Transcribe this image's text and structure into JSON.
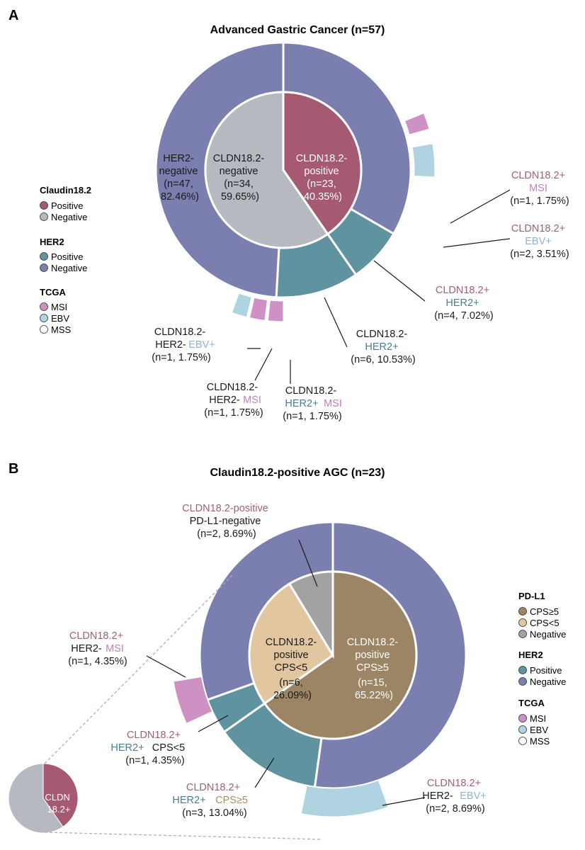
{
  "colors": {
    "cldn_positive": "#a55a72",
    "cldn_negative": "#b6b9bf",
    "her2_positive": "#5e939f",
    "her2_negative": "#7a7fb0",
    "msi": "#cd92c3",
    "ebv": "#afd3e0",
    "mss": "#ffffff",
    "cps_ge5": "#9b8565",
    "cps_lt5": "#e1c6a0",
    "pdl1_negative": "#a2a2a2",
    "label_pink": "#a06076",
    "label_teal": "#4d7d8c",
    "label_msi": "#c07fba",
    "label_ebv": "#8fb4d3",
    "label_tan": "#a98e62"
  },
  "panel_a": {
    "panel_letter": "A",
    "lbl_in_neg": [
      "CLDN18.2-",
      "negative",
      "(n=34,",
      "59.65%)"
    ],
    "lbl_in_pos": [
      "CLDN18.2-",
      "positive",
      "(n=23,",
      "40.35%)"
    ],
    "lbl_her2neg": [
      "HER2-",
      "negative",
      "(n=47,",
      "82.46%)"
    ],
    "lbl_pos_msi": [
      "CLDN18.2+",
      "MSI",
      "(n=1, 1.75%)"
    ],
    "lbl_pos_ebv": [
      "CLDN18.2+",
      "EBV+",
      "(n=2, 3.51%)"
    ],
    "lbl_pos_her2": [
      "CLDN18.2+",
      "HER2+",
      "(n=4, 7.02%)"
    ],
    "lbl_neg_her2": [
      "CLDN18.2-",
      "HER2+",
      "(n=6, 10.53%)"
    ],
    "lbl_neg_ebv": [
      "CLDN18.2-",
      "HER2-",
      "EBV+",
      "(n=1, 1.75%)"
    ],
    "lbl_neg_msi": [
      "CLDN18.2-",
      "HER2-",
      "MSI",
      "(n=1, 1.75%)"
    ],
    "lbl_neg_her2_msi": [
      "CLDN18.2-",
      "HER2+",
      "MSI",
      "(n=1, 1.75%)"
    ],
    "legend": [
      {
        "header": "Claudin18.2",
        "items": [
          {
            "label": "Positive",
            "color": "#a55a72"
          },
          {
            "label": "Negative",
            "color": "#b6b9bf"
          }
        ]
      },
      {
        "header": "HER2",
        "items": [
          {
            "label": "Positive",
            "color": "#5e939f"
          },
          {
            "label": "Negative",
            "color": "#7a7fb0"
          }
        ]
      },
      {
        "header": "TCGA",
        "items": [
          {
            "label": "MSI",
            "color": "#cd92c3"
          },
          {
            "label": "EBV",
            "color": "#afd3e0"
          },
          {
            "label": "MSS",
            "color": "#ffffff"
          }
        ]
      }
    ]
  },
  "panel_b": {
    "panel_letter": "B",
    "lbl_ge5": [
      "CLDN18.2-",
      "positive",
      "CPS≥5",
      "(n=15,",
      "65.22%)"
    ],
    "lbl_lt5": [
      "CLDN18.2-",
      "positive",
      "CPS<5",
      "(n=6,",
      "26.09%)"
    ],
    "lbl_pdneg": [
      "CLDN18.2-positive",
      "PD-L1-negative",
      "(n=2, 8.69%)"
    ],
    "lbl_msi": [
      "CLDN18.2+",
      "HER2-",
      "MSI",
      "(n=1, 4.35%)"
    ],
    "lbl_her2_lt5": [
      "CLDN18.2+",
      "HER2+",
      "CPS<5",
      "(n=1, 4.35%)"
    ],
    "lbl_her2_ge5": [
      "CLDN18.2+",
      "HER2+",
      "CPS≥5",
      "(n=3, 13.04%)"
    ],
    "lbl_ebv": [
      "CLDN18.2+",
      "HER2-",
      "EBV+",
      "(n=2, 8.69%)"
    ],
    "mini_label": [
      "CLDN",
      "18.2+"
    ],
    "legend": [
      {
        "header": "PD-L1",
        "items": [
          {
            "label": "CPS≥5",
            "color": "#9b8565"
          },
          {
            "label": "CPS<5",
            "color": "#e1c6a0"
          },
          {
            "label": "Negative",
            "color": "#a2a2a2"
          }
        ]
      },
      {
        "header": "HER2",
        "items": [
          {
            "label": "Positive",
            "color": "#5e939f"
          },
          {
            "label": "Negative",
            "color": "#7a7fb0"
          }
        ]
      },
      {
        "header": "TCGA",
        "items": [
          {
            "label": "MSI",
            "color": "#cd92c3"
          },
          {
            "label": "EBV",
            "color": "#afd3e0"
          },
          {
            "label": "MSS",
            "color": "#ffffff"
          }
        ]
      }
    ]
  },
  "chart_data": [
    {
      "type": "pie",
      "subtype": "nested-donut",
      "title": "Advanced Gastric Cancer (n=57)",
      "inner_ring": {
        "name": "Claudin18.2",
        "categories": [
          "CLDN18.2-negative",
          "CLDN18.2-positive"
        ],
        "counts": [
          34,
          23
        ],
        "percents": [
          59.65,
          40.35
        ]
      },
      "middle_ring": {
        "name": "HER2",
        "slices": [
          {
            "label": "CLDN18.2+ HER2-",
            "count": 19,
            "her2": "negative"
          },
          {
            "label": "CLDN18.2+ HER2+",
            "count": 4,
            "her2": "positive",
            "percent": 7.02
          },
          {
            "label": "CLDN18.2- HER2+",
            "count": 6,
            "her2": "positive",
            "percent": 10.53
          },
          {
            "label": "CLDN18.2- HER2-",
            "count": 28,
            "her2": "negative"
          }
        ],
        "her2_negative_total": {
          "count": 47,
          "percent": 82.46
        }
      },
      "outer_ring": {
        "name": "TCGA",
        "slices": [
          {
            "label": "CLDN18.2+ MSI",
            "count": 1,
            "percent": 1.75
          },
          {
            "label": "CLDN18.2+ EBV+",
            "count": 2,
            "percent": 3.51
          },
          {
            "label": "CLDN18.2- HER2+ MSI",
            "count": 1,
            "percent": 1.75
          },
          {
            "label": "CLDN18.2- HER2- MSI",
            "count": 1,
            "percent": 1.75
          },
          {
            "label": "CLDN18.2- HER2- EBV+",
            "count": 1,
            "percent": 1.75
          }
        ]
      }
    },
    {
      "type": "pie",
      "subtype": "nested-donut",
      "title": "Claudin18.2-positive AGC (n=23)",
      "inner_ring": {
        "name": "PD-L1",
        "categories": [
          "CLDN18.2-positive CPS≥5",
          "CLDN18.2-positive CPS<5",
          "CLDN18.2-positive PD-L1-negative"
        ],
        "counts": [
          15,
          6,
          2
        ],
        "percents": [
          65.22,
          26.09,
          8.69
        ]
      },
      "middle_ring": {
        "name": "HER2",
        "slices": [
          {
            "label": "CLDN18.2+ HER2+ CPS≥5",
            "count": 3,
            "percent": 13.04
          },
          {
            "label": "CLDN18.2+ HER2+ CPS<5",
            "count": 1,
            "percent": 4.35
          },
          {
            "label": "HER2-",
            "count": 19,
            "her2": "negative"
          }
        ]
      },
      "outer_ring": {
        "name": "TCGA",
        "slices": [
          {
            "label": "CLDN18.2+ HER2- MSI",
            "count": 1,
            "percent": 4.35
          },
          {
            "label": "CLDN18.2+ HER2- EBV+",
            "count": 2,
            "percent": 8.69
          }
        ]
      },
      "inset": {
        "label": "CLDN 18.2+",
        "categories": [
          "CLDN18.2+",
          "CLDN18.2-"
        ],
        "counts": [
          23,
          34
        ]
      }
    }
  ]
}
